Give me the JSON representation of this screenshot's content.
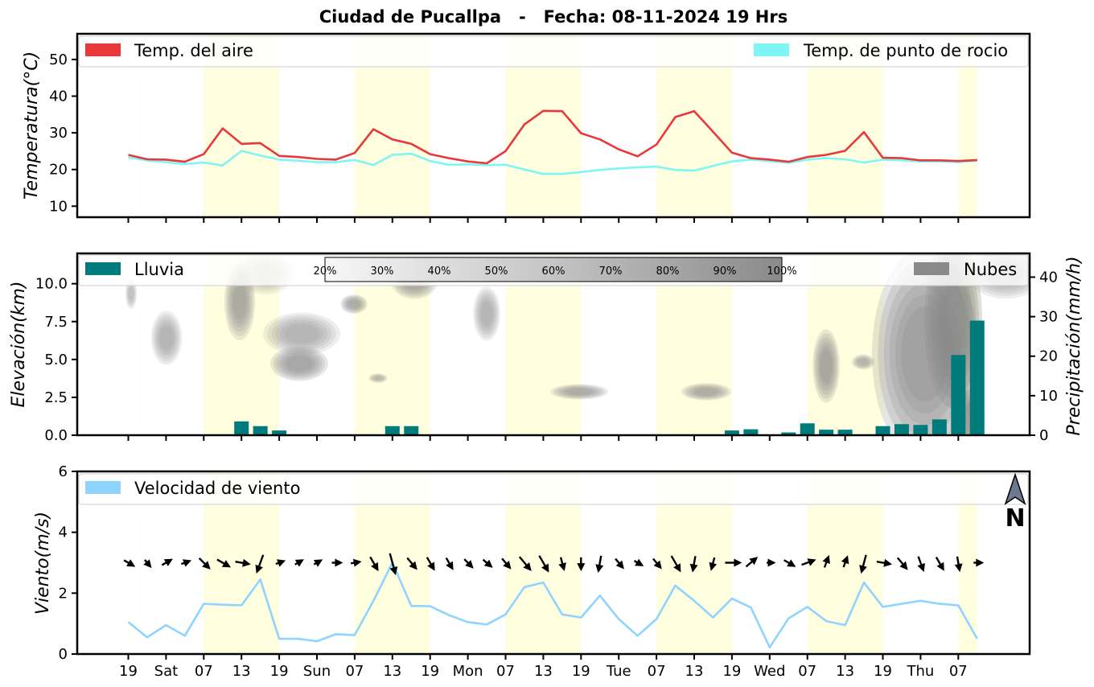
{
  "title": "Ciudad de Pucallpa   -   Fecha: 08-11-2024 19 Hrs",
  "colors": {
    "temp": "#e8383b",
    "dew": "#7ff5f5",
    "rain": "#007b7b",
    "wind": "#8fd3ff",
    "daylight": "#ffffe0",
    "clouds": "#8a8a8a"
  },
  "north_label": "N",
  "north_icon": "north-arrow-icon",
  "chart_data": [
    {
      "type": "line",
      "title": "Ciudad de Pucallpa   -   Fecha: 08-11-2024 19 Hrs",
      "ylabel": "Temperatura(°C)",
      "ylim": [
        7,
        57
      ],
      "yticks": [
        10,
        20,
        30,
        40,
        50
      ],
      "x_start": "08-11-2024 19 Hrs",
      "x_step_hours": 3,
      "xticks": [
        "19",
        "Sat",
        "07",
        "13",
        "19",
        "Sun",
        "07",
        "13",
        "19",
        "Mon",
        "07",
        "13",
        "19",
        "Tue",
        "07",
        "13",
        "19",
        "Wed",
        "07",
        "13",
        "19",
        "Thu",
        "07"
      ],
      "series": [
        {
          "name": "Temp. del aire",
          "values": [
            24.0,
            22.8,
            22.7,
            22.1,
            24.2,
            31.2,
            27.0,
            27.2,
            23.7,
            23.4,
            22.9,
            22.7,
            24.5,
            31.0,
            28.2,
            27.0,
            24.2,
            23.1,
            22.2,
            21.7,
            25.0,
            32.3,
            36.0,
            35.9,
            29.9,
            28.2,
            25.5,
            23.6,
            26.8,
            34.3,
            35.9,
            30.3,
            24.6,
            23.1,
            22.7,
            22.1,
            23.4,
            24.0,
            25.1,
            30.2,
            23.2,
            23.1,
            22.5,
            22.5,
            22.3,
            22.6
          ]
        },
        {
          "name": "Temp. de punto de rocio",
          "values": [
            23.3,
            22.5,
            22.0,
            21.5,
            21.9,
            21.1,
            25.1,
            23.8,
            22.7,
            22.4,
            22.0,
            22.0,
            22.6,
            21.2,
            24.0,
            24.3,
            22.3,
            21.3,
            21.4,
            21.2,
            21.3,
            20.0,
            18.8,
            18.8,
            19.3,
            19.9,
            20.3,
            20.6,
            20.8,
            19.9,
            19.7,
            21.0,
            22.2,
            22.7,
            22.3,
            21.8,
            22.7,
            23.1,
            22.8,
            21.9,
            22.7,
            22.5,
            22.2,
            22.2,
            22.0,
            22.4
          ]
        }
      ],
      "legend": [
        "top-left",
        "top-right"
      ]
    },
    {
      "type": "bar",
      "ylabel": "Elevación(km)",
      "ylim": [
        0,
        12
      ],
      "yticks": [
        "0.0",
        "2.5",
        "5.0",
        "7.5",
        "10.0"
      ],
      "y2label": "Precipitación(mm/h)",
      "y2lim": [
        0,
        46
      ],
      "y2ticks": [
        0,
        10,
        20,
        30,
        40
      ],
      "series": [
        {
          "name": "Lluvia",
          "values": [
            0,
            0,
            0,
            0,
            0,
            0,
            3.5,
            2.3,
            1.2,
            0,
            0,
            0,
            0,
            0,
            2.3,
            2.3,
            0,
            0,
            0,
            0,
            0,
            0,
            0,
            0,
            0,
            0,
            0,
            0,
            0,
            0,
            0,
            0,
            1.2,
            1.5,
            0,
            0.7,
            3.0,
            1.4,
            1.4,
            0,
            2.3,
            2.8,
            2.6,
            4.0,
            20.3,
            29.0
          ]
        },
        {
          "name": "Nubes",
          "levels": [
            "20%",
            "30%",
            "40%",
            "50%",
            "60%",
            "70%",
            "80%",
            "90%",
            "100%"
          ]
        }
      ],
      "legend": [
        "top-left",
        "top-right",
        "colorbar-top-center"
      ]
    },
    {
      "type": "line",
      "ylabel": "Viento(m/s)",
      "ylim": [
        0,
        6
      ],
      "yticks": [
        0,
        2,
        4,
        6
      ],
      "series": [
        {
          "name": "Velocidad de viento",
          "values": [
            1.05,
            0.55,
            0.95,
            0.6,
            1.65,
            1.62,
            1.6,
            2.45,
            0.5,
            0.5,
            0.42,
            0.65,
            0.62,
            1.75,
            3.0,
            1.58,
            1.57,
            1.28,
            1.05,
            0.97,
            1.3,
            2.2,
            2.35,
            1.3,
            1.2,
            1.92,
            1.15,
            0.6,
            1.15,
            2.25,
            1.75,
            1.2,
            1.82,
            1.53,
            0.22,
            1.17,
            1.55,
            1.08,
            0.95,
            2.35,
            1.55,
            1.65,
            1.75,
            1.65,
            1.6,
            0.5
          ]
        }
      ],
      "wind_dir_deg": [
        300,
        320,
        240,
        250,
        315,
        300,
        280,
        20,
        250,
        240,
        240,
        270,
        260,
        330,
        345,
        320,
        330,
        330,
        315,
        310,
        320,
        320,
        330,
        345,
        0,
        10,
        320,
        300,
        320,
        330,
        10,
        15,
        270,
        230,
        270,
        300,
        250,
        200,
        200,
        15,
        280,
        320,
        340,
        330,
        350,
        270
      ],
      "legend": [
        "top-left"
      ]
    }
  ]
}
